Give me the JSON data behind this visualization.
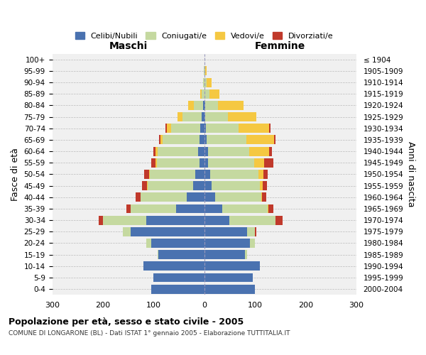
{
  "age_groups": [
    "0-4",
    "5-9",
    "10-14",
    "15-19",
    "20-24",
    "25-29",
    "30-34",
    "35-39",
    "40-44",
    "45-49",
    "50-54",
    "55-59",
    "60-64",
    "65-69",
    "70-74",
    "75-79",
    "80-84",
    "85-89",
    "90-94",
    "95-99",
    "100+"
  ],
  "birth_years": [
    "2000-2004",
    "1995-1999",
    "1990-1994",
    "1985-1989",
    "1980-1984",
    "1975-1979",
    "1970-1974",
    "1965-1969",
    "1960-1964",
    "1955-1959",
    "1950-1954",
    "1945-1949",
    "1940-1944",
    "1935-1939",
    "1930-1934",
    "1925-1929",
    "1920-1924",
    "1915-1919",
    "1910-1914",
    "1905-1909",
    "≤ 1904"
  ],
  "male": {
    "celibi": [
      105,
      100,
      120,
      90,
      105,
      145,
      115,
      55,
      35,
      22,
      18,
      9,
      12,
      10,
      8,
      5,
      2,
      0,
      0,
      0,
      0
    ],
    "coniugati": [
      0,
      0,
      0,
      2,
      10,
      15,
      85,
      90,
      90,
      90,
      90,
      85,
      80,
      72,
      58,
      38,
      18,
      5,
      2,
      1,
      0
    ],
    "vedovi": [
      0,
      0,
      0,
      0,
      0,
      0,
      0,
      0,
      0,
      1,
      1,
      2,
      4,
      5,
      8,
      10,
      12,
      3,
      1,
      0,
      0
    ],
    "divorziati": [
      0,
      0,
      0,
      0,
      0,
      0,
      8,
      8,
      10,
      10,
      10,
      8,
      5,
      2,
      2,
      0,
      0,
      0,
      0,
      0,
      0
    ]
  },
  "female": {
    "nubili": [
      100,
      95,
      110,
      80,
      90,
      85,
      50,
      35,
      22,
      15,
      12,
      8,
      8,
      5,
      3,
      2,
      2,
      0,
      0,
      0,
      0
    ],
    "coniugate": [
      0,
      0,
      0,
      5,
      10,
      15,
      90,
      90,
      90,
      95,
      95,
      90,
      80,
      78,
      65,
      45,
      25,
      10,
      5,
      2,
      0
    ],
    "vedove": [
      0,
      0,
      0,
      0,
      0,
      0,
      0,
      1,
      2,
      5,
      10,
      20,
      40,
      55,
      60,
      55,
      50,
      20,
      10,
      2,
      0
    ],
    "divorziate": [
      0,
      0,
      0,
      0,
      0,
      2,
      15,
      10,
      8,
      8,
      8,
      18,
      5,
      2,
      2,
      0,
      0,
      0,
      0,
      0,
      0
    ]
  },
  "colors": {
    "celibi": "#4a72b0",
    "coniugati": "#c5d9a0",
    "vedovi": "#f5c842",
    "divorziati": "#c0392b"
  },
  "xlim": 300,
  "title": "Popolazione per età, sesso e stato civile - 2005",
  "subtitle": "COMUNE DI LONGARONE (BL) - Dati ISTAT 1° gennaio 2005 - Elaborazione TUTTITALIA.IT",
  "xlabel_left": "Maschi",
  "xlabel_right": "Femmine",
  "ylabel": "Fasce di età",
  "ylabel_right": "Anni di nascita",
  "legend_labels": [
    "Celibi/Nubili",
    "Coniugati/e",
    "Vedovi/e",
    "Divorziati/e"
  ],
  "bg_color": "#ffffff",
  "plot_bg_color": "#f0f0f0"
}
